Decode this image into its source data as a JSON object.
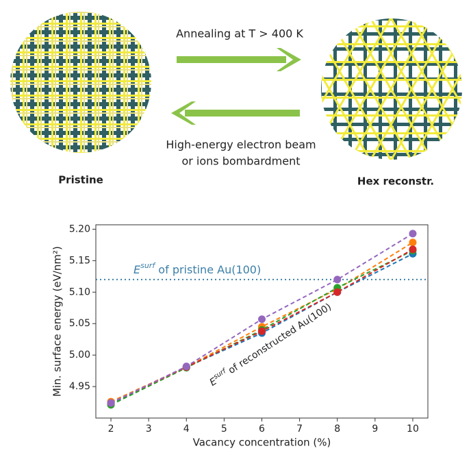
{
  "diagram": {
    "forward_label": "Annealing at T > 400 K",
    "backward_label_1": "High-energy electron beam",
    "backward_label_2": "or ions bombardment",
    "left_caption": "Pristine",
    "right_caption": "Hex reconstr."
  },
  "chart_data": {
    "type": "line",
    "x_label": "Vacancy concentration (%)",
    "y_label": "Min. surface energy (eV/nm²)",
    "x": [
      2,
      4,
      6,
      8,
      10
    ],
    "series": [
      {
        "color": "#1f77b4",
        "values": [
          4.922,
          4.981,
          5.035,
          5.1,
          5.161
        ]
      },
      {
        "color": "#ff7f0e",
        "values": [
          4.926,
          4.981,
          5.045,
          5.105,
          5.179
        ]
      },
      {
        "color": "#2ca02c",
        "values": [
          4.921,
          4.98,
          5.04,
          5.107,
          5.166
        ]
      },
      {
        "color": "#d62728",
        "values": [
          4.924,
          4.981,
          5.038,
          5.1,
          5.168
        ]
      },
      {
        "color": "#9467bd",
        "values": [
          4.924,
          4.982,
          5.057,
          5.12,
          5.193
        ]
      }
    ],
    "xlim": [
      1.6,
      10.4
    ],
    "ylim": [
      4.9,
      5.207
    ],
    "xticks": [
      2,
      3,
      4,
      5,
      6,
      7,
      8,
      9,
      10
    ],
    "yticks": [
      4.95,
      {
        "value": 5.0,
        "label": "5.00"
      },
      5.05,
      {
        "value": 5.1,
        "label": "5.10"
      },
      5.15,
      {
        "value": 5.2,
        "label": "5.20"
      }
    ],
    "reference_line": {
      "value": 5.12,
      "color": "#3b7fa8",
      "symbol": "E",
      "superscript": "surf",
      "text": " of pristine Au(100)"
    },
    "annotation": {
      "symbol": "E",
      "superscript": "surf",
      "text": " of reconstructed Au(100)"
    }
  }
}
